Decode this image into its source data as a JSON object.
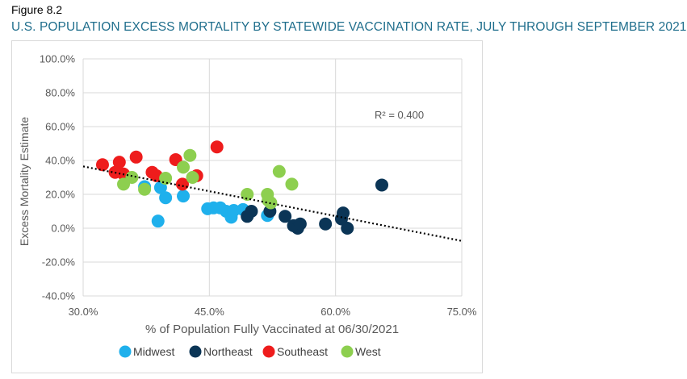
{
  "figure_label": "Figure 8.2",
  "figure_title": "U.S. POPULATION EXCESS MORTALITY BY STATEWIDE VACCINATION RATE, JULY THROUGH SEPTEMBER 2021",
  "colors": {
    "Midwest": "#1fb0ec",
    "Northeast": "#0b3556",
    "Southeast": "#ee1c1c",
    "West": "#8dcf4f",
    "title": "#1f6e8c",
    "grid": "#d9d9d9",
    "axis_text": "#595959"
  },
  "chart_data": {
    "type": "scatter",
    "xlabel": "% of Population Fully Vaccinated at 06/30/2021",
    "ylabel": "Excess Mortality Estimate",
    "xlim": [
      30,
      75
    ],
    "ylim": [
      -40,
      100
    ],
    "x_ticks": [
      {
        "value": 30,
        "label": "30.0%"
      },
      {
        "value": 45,
        "label": "45.0%"
      },
      {
        "value": 60,
        "label": "60.0%"
      },
      {
        "value": 75,
        "label": "75.0%"
      }
    ],
    "y_ticks": [
      {
        "value": 100,
        "label": "100.0%"
      },
      {
        "value": 80,
        "label": "80.0%"
      },
      {
        "value": 60,
        "label": "60.0%"
      },
      {
        "value": 40,
        "label": "40.0%"
      },
      {
        "value": 20,
        "label": "20.0%"
      },
      {
        "value": 0,
        "label": "0.0%"
      },
      {
        "value": -20,
        "label": "-20.0%"
      },
      {
        "value": -40,
        "label": "-40.0%"
      }
    ],
    "grid": true,
    "legend_position": "bottom",
    "annotation": "R² = 0.400",
    "trendline": {
      "style": "dotted",
      "x": [
        30,
        75
      ],
      "y": [
        36.5,
        -7.5
      ]
    },
    "series": [
      {
        "name": "Midwest",
        "points": [
          [
            37.3,
            24.5
          ],
          [
            38.9,
            4.2
          ],
          [
            39.2,
            24
          ],
          [
            39.8,
            18
          ],
          [
            41.9,
            19
          ],
          [
            44.8,
            11.5
          ],
          [
            45.5,
            12
          ],
          [
            46.3,
            12
          ],
          [
            47.0,
            10
          ],
          [
            47.6,
            6.5
          ],
          [
            47.9,
            10.5
          ],
          [
            49.0,
            11
          ],
          [
            51.9,
            7.5
          ]
        ]
      },
      {
        "name": "Northeast",
        "points": [
          [
            49.5,
            7
          ],
          [
            50.0,
            10
          ],
          [
            52.2,
            10
          ],
          [
            54.0,
            7
          ],
          [
            55.0,
            1.5
          ],
          [
            55.5,
            0
          ],
          [
            55.8,
            2.5
          ],
          [
            58.8,
            2.5
          ],
          [
            60.7,
            5.5
          ],
          [
            60.9,
            9
          ],
          [
            61.4,
            0
          ],
          [
            65.5,
            25.5
          ]
        ]
      },
      {
        "name": "Southeast",
        "points": [
          [
            32.3,
            37.5
          ],
          [
            33.8,
            33
          ],
          [
            34.3,
            39
          ],
          [
            34.8,
            32
          ],
          [
            36.3,
            42
          ],
          [
            38.2,
            33
          ],
          [
            38.7,
            31
          ],
          [
            41.0,
            40.5
          ],
          [
            41.8,
            26
          ],
          [
            43.5,
            31
          ],
          [
            45.9,
            48
          ]
        ]
      },
      {
        "name": "West",
        "points": [
          [
            34.8,
            26
          ],
          [
            35.8,
            30
          ],
          [
            37.3,
            23
          ],
          [
            39.8,
            29.5
          ],
          [
            41.9,
            36
          ],
          [
            42.7,
            43
          ],
          [
            43.0,
            30
          ],
          [
            49.5,
            20
          ],
          [
            51.9,
            20
          ],
          [
            52.0,
            16.5
          ],
          [
            52.3,
            15
          ],
          [
            53.3,
            33.5
          ],
          [
            54.8,
            26
          ]
        ]
      }
    ]
  }
}
